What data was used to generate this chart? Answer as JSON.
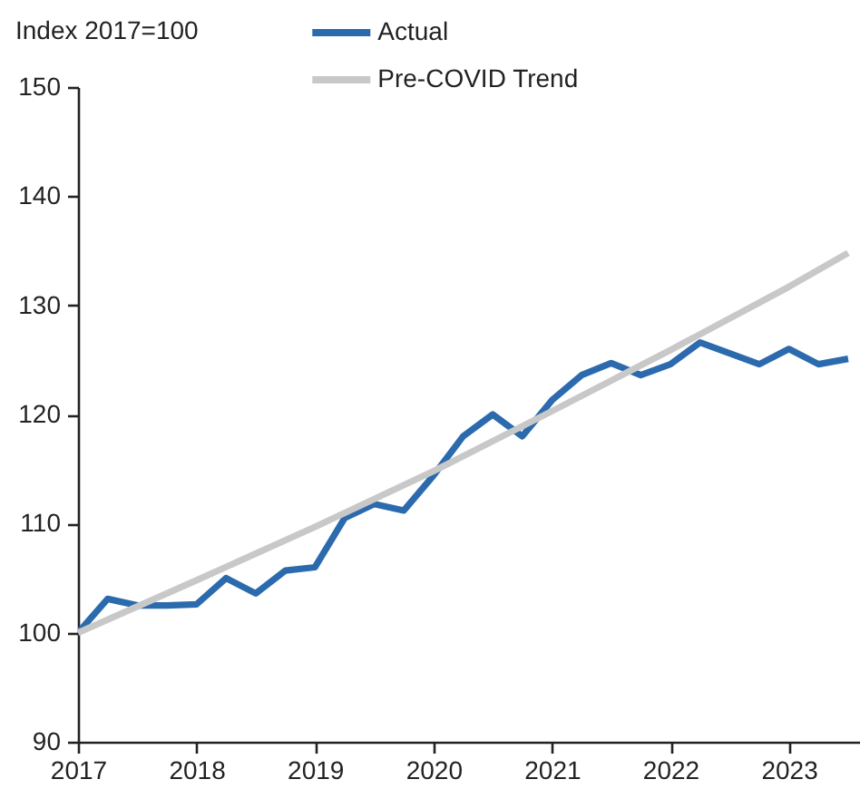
{
  "chart_data": {
    "type": "line",
    "ylabel": "Index 2017=100",
    "xlim": [
      2017,
      2023.6
    ],
    "xticks": [
      2017,
      2018,
      2019,
      2020,
      2021,
      2022,
      2023
    ],
    "ylim": [
      90,
      150
    ],
    "yticks": [
      90,
      100,
      110,
      120,
      130,
      140,
      150
    ],
    "grid": false,
    "legend": "top",
    "series": [
      {
        "name": "Actual",
        "color": "#2b6aad",
        "x": [
          2017,
          2017.25,
          2017.5,
          2017.75,
          2018,
          2018.25,
          2018.5,
          2018.75,
          2019,
          2019.25,
          2019.5,
          2019.75,
          2020,
          2020.25,
          2020.5,
          2020.75,
          2021,
          2021.25,
          2021.5,
          2021.75,
          2022,
          2022.25,
          2022.5,
          2022.75,
          2023,
          2023.25,
          2023.5
        ],
        "values": [
          100,
          103.1,
          102.5,
          102.5,
          102.6,
          105,
          103.6,
          105.7,
          106,
          110.5,
          111.8,
          111.2,
          114.4,
          118,
          120,
          118,
          121.3,
          123.6,
          124.7,
          123.6,
          124.6,
          126.6,
          125.6,
          124.6,
          126,
          124.6,
          125.1
        ]
      },
      {
        "name": "Pre-COVID Trend",
        "color": "#c8c8c8",
        "x": [
          2017,
          2018,
          2019,
          2020,
          2021,
          2022,
          2023,
          2023.5
        ],
        "values": [
          100,
          104.8,
          109.7,
          114.8,
          120.3,
          125.9,
          131.7,
          134.8
        ]
      }
    ]
  }
}
